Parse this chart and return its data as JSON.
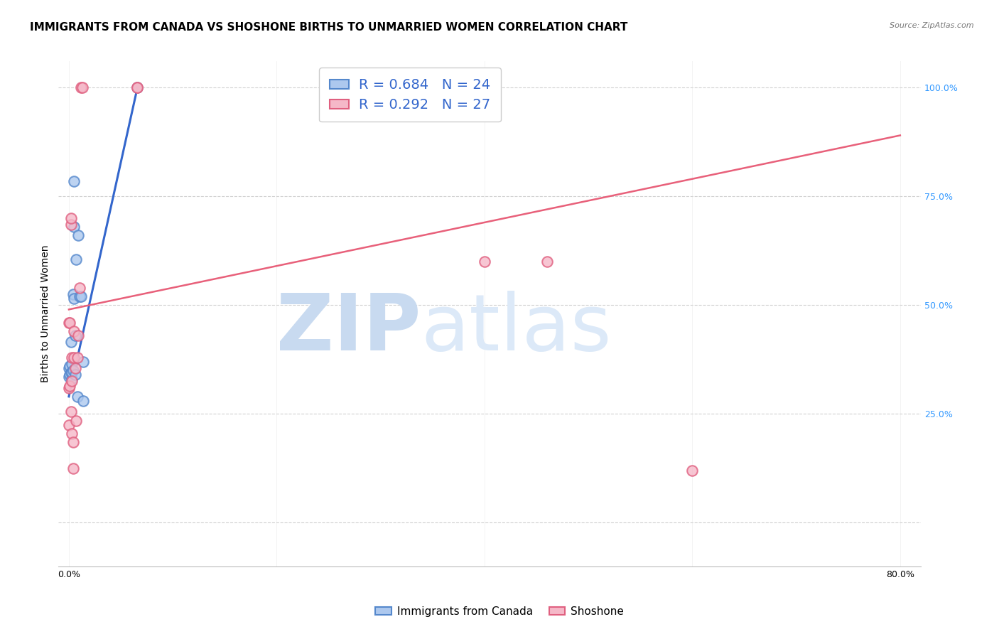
{
  "title": "IMMIGRANTS FROM CANADA VS SHOSHONE BIRTHS TO UNMARRIED WOMEN CORRELATION CHART",
  "source": "Source: ZipAtlas.com",
  "ylabel": "Births to Unmarried Women",
  "blue_R": 0.684,
  "blue_N": 24,
  "pink_R": 0.292,
  "pink_N": 27,
  "blue_color": "#adc8ee",
  "pink_color": "#f5b8c8",
  "blue_edge_color": "#5588cc",
  "pink_edge_color": "#e06080",
  "blue_line_color": "#3366cc",
  "pink_line_color": "#e8607a",
  "blue_scatter_x": [
    0.0,
    0.0,
    0.001,
    0.001,
    0.002,
    0.002,
    0.003,
    0.003,
    0.003,
    0.004,
    0.004,
    0.005,
    0.005,
    0.005,
    0.006,
    0.006,
    0.007,
    0.008,
    0.009,
    0.01,
    0.012,
    0.014,
    0.014,
    0.066
  ],
  "blue_scatter_y": [
    0.335,
    0.355,
    0.34,
    0.36,
    0.345,
    0.415,
    0.33,
    0.345,
    0.365,
    0.35,
    0.525,
    0.515,
    0.785,
    0.68,
    0.34,
    0.43,
    0.605,
    0.29,
    0.66,
    0.52,
    0.52,
    0.37,
    0.28,
    1.0
  ],
  "pink_scatter_x": [
    0.0,
    0.0,
    0.0,
    0.001,
    0.001,
    0.002,
    0.002,
    0.002,
    0.003,
    0.003,
    0.003,
    0.004,
    0.004,
    0.005,
    0.005,
    0.006,
    0.007,
    0.008,
    0.009,
    0.01,
    0.012,
    0.013,
    0.066,
    0.066,
    0.4,
    0.46,
    0.6
  ],
  "pink_scatter_y": [
    0.225,
    0.31,
    0.46,
    0.315,
    0.46,
    0.255,
    0.685,
    0.7,
    0.205,
    0.325,
    0.38,
    0.125,
    0.185,
    0.38,
    0.44,
    0.355,
    0.235,
    0.38,
    0.43,
    0.54,
    1.0,
    1.0,
    1.0,
    1.0,
    0.6,
    0.6,
    0.12
  ],
  "blue_line_x": [
    0.0,
    0.066
  ],
  "blue_line_y": [
    0.29,
    1.0
  ],
  "pink_line_x": [
    0.0,
    0.8
  ],
  "pink_line_y": [
    0.49,
    0.89
  ],
  "xlim": [
    -0.01,
    0.82
  ],
  "ylim": [
    -0.1,
    1.06
  ],
  "ytick_vals": [
    0.0,
    0.25,
    0.5,
    0.75,
    1.0
  ],
  "ytick_labels": [
    "",
    "25.0%",
    "50.0%",
    "75.0%",
    "100.0%"
  ],
  "xtick_vals": [
    0.0,
    0.2,
    0.4,
    0.6,
    0.8
  ],
  "xtick_labels": [
    "0.0%",
    "",
    "",
    "",
    "80.0%"
  ],
  "watermark_zip": "ZIP",
  "watermark_atlas": "atlas",
  "watermark_color": "#ccdff5",
  "background_color": "#ffffff",
  "grid_color": "#cccccc",
  "title_fontsize": 11,
  "axis_label_fontsize": 10,
  "tick_fontsize": 9,
  "legend_fontsize": 13,
  "marker_size": 110,
  "marker_edge_width": 1.5
}
